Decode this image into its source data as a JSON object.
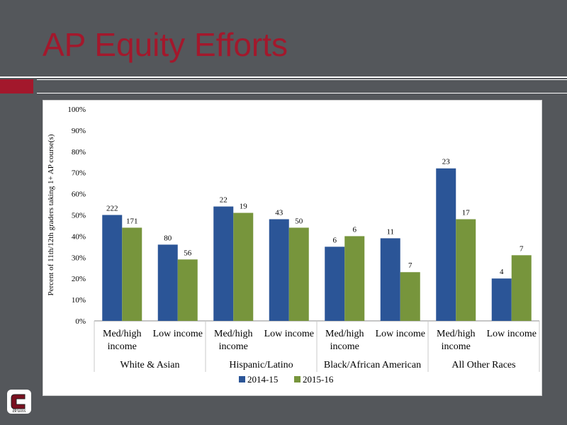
{
  "slide": {
    "title": "AP Equity Efforts"
  },
  "colors": {
    "title": "#a3182c",
    "background": "#54575b",
    "series_2014": "#2b5597",
    "series_2015": "#77953c"
  },
  "logo": {
    "icon": "bruins-c-logo-icon",
    "text": "Bruins"
  },
  "chart_data": {
    "type": "bar",
    "ylabel": "Percent of 11th/12th graders taking 1+ AP course(s)",
    "ylim": [
      0,
      100
    ],
    "yticks": [
      "0%",
      "10%",
      "20%",
      "30%",
      "40%",
      "50%",
      "60%",
      "70%",
      "80%",
      "90%",
      "100%"
    ],
    "grid": false,
    "legend": "bottom",
    "groups": [
      {
        "label": "White & Asian",
        "categories": [
          [
            "Med/high",
            "income"
          ],
          [
            "Low income"
          ]
        ]
      },
      {
        "label": "Hispanic/Latino",
        "categories": [
          [
            "Med/high",
            "income"
          ],
          [
            "Low income"
          ]
        ]
      },
      {
        "label": "Black/African American",
        "categories": [
          [
            "Med/high",
            "income"
          ],
          [
            "Low income"
          ]
        ]
      },
      {
        "label": "All Other Races",
        "categories": [
          [
            "Med/high",
            "income"
          ],
          [
            "Low income"
          ]
        ]
      }
    ],
    "series": [
      {
        "name": "2014-15",
        "color": "#2b5597",
        "values": [
          50,
          36,
          54,
          48,
          35,
          39,
          72,
          20
        ],
        "labels": [
          "222",
          "80",
          "22",
          "43",
          "6",
          "11",
          "23",
          "4"
        ]
      },
      {
        "name": "2015-16",
        "color": "#77953c",
        "values": [
          44,
          29,
          51,
          44,
          40,
          23,
          48,
          31
        ],
        "labels": [
          "171",
          "56",
          "19",
          "50",
          "6",
          "7",
          "17",
          "7"
        ]
      }
    ]
  }
}
